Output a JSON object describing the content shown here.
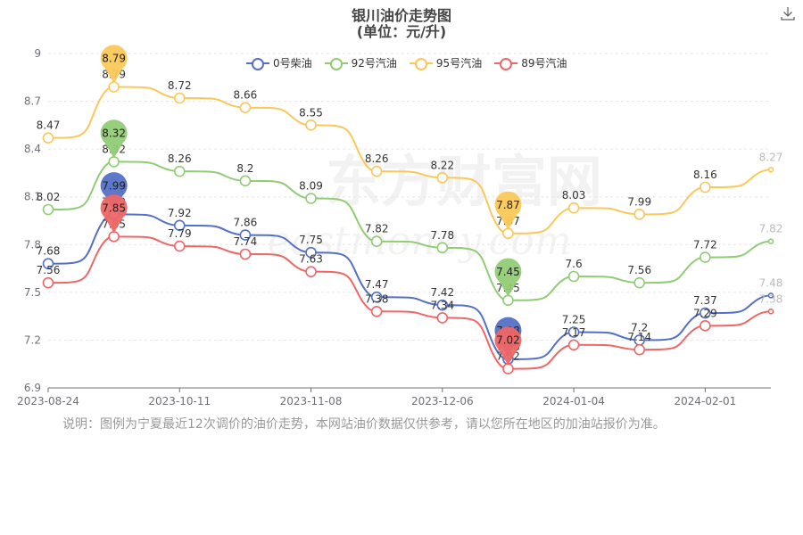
{
  "header": {
    "title": "银川油价走势图",
    "subtitle": "(单位：元/升)"
  },
  "toolbar": {
    "download_icon": "download-icon"
  },
  "note": "说明：图例为宁夏最近12次调价的油价走势，本网站油价数据仅供参考，请以您所在地区的加油站报价为准。",
  "watermark": {
    "cn": "东方财富网",
    "en": "eastmoney.com"
  },
  "colors": {
    "diesel0": "#5470c6",
    "gas92": "#91cc75",
    "gas95": "#fac858",
    "gas89": "#ee6666"
  },
  "chart_data": {
    "type": "line",
    "title": "银川油价走势图",
    "subtitle": "(单位：元/升)",
    "x": [
      "2023-08-24",
      "2023-09-13",
      "2023-10-11",
      "2023-10-25",
      "2023-11-08",
      "2023-11-22",
      "2023-12-06",
      "2023-12-20",
      "2024-01-04",
      "2024-01-17",
      "2024-02-01",
      "2024-02-19"
    ],
    "x_ticks": [
      "2023-08-24",
      "2023-10-11",
      "2023-11-08",
      "2023-12-06",
      "2024-01-04",
      "2024-02-01"
    ],
    "y_ticks": [
      "6.9",
      "7.2",
      "7.5",
      "7.8",
      "8.1",
      "8.4",
      "8.7",
      "9"
    ],
    "ylim": [
      6.9,
      9
    ],
    "legend_position": "top",
    "grid": "horizontal",
    "series": [
      {
        "name": "0号柴油",
        "values": [
          7.68,
          7.99,
          7.92,
          7.86,
          7.75,
          7.47,
          7.42,
          7.08,
          7.25,
          7.2,
          7.37,
          7.48
        ],
        "labels": [
          "7.68",
          "7.99",
          "7.92",
          "7.86",
          "7.75",
          "7.47",
          "7.42",
          "7.08",
          "7.25",
          "7.2",
          "7.37",
          "7.48"
        ],
        "max_marker": "7.99",
        "min_marker": "7.08"
      },
      {
        "name": "92号汽油",
        "values": [
          8.02,
          8.32,
          8.26,
          8.2,
          8.09,
          7.82,
          7.78,
          7.45,
          7.6,
          7.56,
          7.72,
          7.82
        ],
        "labels": [
          "8.02",
          "8.32",
          "8.26",
          "8.2",
          "8.09",
          "7.82",
          "7.78",
          "7.45",
          "7.6",
          "7.56",
          "7.72",
          "7.82"
        ],
        "max_marker": "8.32",
        "min_marker": "7.45"
      },
      {
        "name": "95号汽油",
        "values": [
          8.47,
          8.79,
          8.72,
          8.66,
          8.55,
          8.26,
          8.22,
          7.87,
          8.03,
          7.99,
          8.16,
          8.27
        ],
        "labels": [
          "8.47",
          "8.79",
          "8.72",
          "8.66",
          "8.55",
          "8.26",
          "8.22",
          "7.87",
          "8.03",
          "7.99",
          "8.16",
          "8.27"
        ],
        "max_marker": "8.79",
        "min_marker": "7.87"
      },
      {
        "name": "89号汽油",
        "values": [
          7.56,
          7.85,
          7.79,
          7.74,
          7.63,
          7.38,
          7.34,
          7.02,
          7.17,
          7.14,
          7.29,
          7.38
        ],
        "labels": [
          "7.56",
          "7.85",
          "7.79",
          "7.74",
          "7.63",
          "7.38",
          "7.34",
          "7.02",
          "7.17",
          "7.14",
          "7.29",
          "7.38"
        ],
        "max_marker": "7.85",
        "min_marker": "7.02"
      }
    ]
  }
}
